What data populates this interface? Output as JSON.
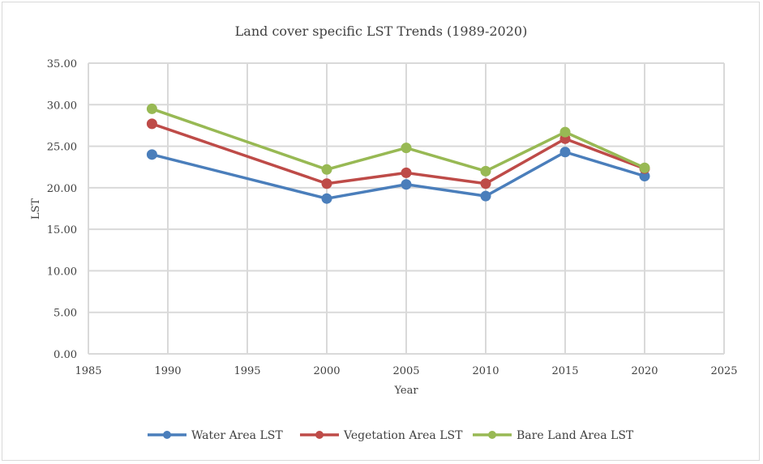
{
  "chart_data": {
    "type": "scatter",
    "title": "Land cover specific LST Trends (1989-2020)",
    "xlabel": "Year",
    "ylabel": "LST",
    "xlim": [
      1985,
      2025
    ],
    "ylim": [
      0,
      35
    ],
    "x_ticks": [
      "1985",
      "1990",
      "1995",
      "2000",
      "2005",
      "2010",
      "2015",
      "2020",
      "2025"
    ],
    "y_ticks": [
      "0.00",
      "5.00",
      "10.00",
      "15.00",
      "20.00",
      "25.00",
      "30.00",
      "35.00"
    ],
    "grid": true,
    "legend_position": "bottom",
    "series": [
      {
        "name": "Water Area LST",
        "color": "#4a7ebb",
        "x": [
          1989,
          2000,
          2005,
          2010,
          2015,
          2020
        ],
        "y": [
          24.0,
          18.7,
          20.4,
          19.0,
          24.3,
          21.4
        ]
      },
      {
        "name": "Vegetation Area LST",
        "color": "#be4b48",
        "x": [
          1989,
          2000,
          2005,
          2010,
          2015,
          2020
        ],
        "y": [
          27.7,
          20.5,
          21.8,
          20.5,
          25.9,
          22.3
        ]
      },
      {
        "name": "Bare Land Area LST",
        "color": "#98b954",
        "x": [
          1989,
          2000,
          2005,
          2010,
          2015,
          2020
        ],
        "y": [
          29.5,
          22.2,
          24.8,
          22.0,
          26.7,
          22.4
        ]
      }
    ]
  }
}
